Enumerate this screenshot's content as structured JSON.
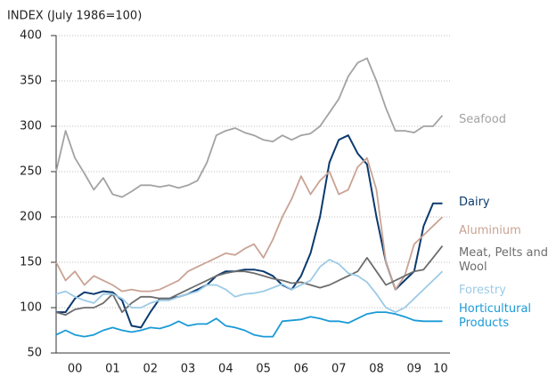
{
  "chart_data": {
    "type": "line",
    "y_label": "INDEX (July 1986=100)",
    "x": [
      2000,
      2000.25,
      2000.5,
      2000.75,
      2001,
      2001.25,
      2001.5,
      2001.75,
      2002,
      2002.25,
      2002.5,
      2002.75,
      2003,
      2003.25,
      2003.5,
      2003.75,
      2004,
      2004.25,
      2004.5,
      2004.75,
      2005,
      2005.25,
      2005.5,
      2005.75,
      2006,
      2006.25,
      2006.5,
      2006.75,
      2007,
      2007.25,
      2007.5,
      2007.75,
      2008,
      2008.25,
      2008.5,
      2008.75,
      2009,
      2009.25,
      2009.5,
      2009.75,
      2010,
      2010.25
    ],
    "xlim": [
      2000,
      2010.45
    ],
    "xticks": [
      {
        "value": 2000.5,
        "label": "00"
      },
      {
        "value": 2001.5,
        "label": "01"
      },
      {
        "value": 2002.5,
        "label": "02"
      },
      {
        "value": 2003.5,
        "label": "03"
      },
      {
        "value": 2004.5,
        "label": "04"
      },
      {
        "value": 2005.5,
        "label": "05"
      },
      {
        "value": 2006.5,
        "label": "06"
      },
      {
        "value": 2007.5,
        "label": "07"
      },
      {
        "value": 2008.5,
        "label": "08"
      },
      {
        "value": 2009.5,
        "label": "09"
      },
      {
        "value": 2010.2,
        "label": "10"
      }
    ],
    "ylim": [
      50,
      400
    ],
    "yticks": [
      50,
      100,
      150,
      200,
      250,
      300,
      350,
      400
    ],
    "grid": true,
    "series": [
      {
        "name": "Seafood",
        "color": "#a3a3a3",
        "values": [
          250,
          295,
          265,
          248,
          230,
          243,
          225,
          222,
          228,
          235,
          235,
          233,
          235,
          232,
          235,
          240,
          260,
          290,
          295,
          298,
          293,
          290,
          285,
          283,
          290,
          285,
          290,
          292,
          300,
          315,
          330,
          355,
          370,
          375,
          350,
          320,
          295,
          295,
          293,
          300,
          300,
          312
        ]
      },
      {
        "name": "Dairy",
        "color": "#0b3a6e",
        "values": [
          95,
          95,
          110,
          117,
          115,
          118,
          117,
          108,
          80,
          78,
          95,
          110,
          110,
          112,
          115,
          120,
          125,
          135,
          140,
          140,
          142,
          142,
          140,
          135,
          125,
          120,
          135,
          160,
          200,
          260,
          285,
          290,
          270,
          258,
          200,
          150,
          120,
          130,
          140,
          190,
          215,
          215
        ]
      },
      {
        "name": "Aluminium",
        "color": "#c9a394",
        "values": [
          150,
          130,
          140,
          125,
          135,
          130,
          125,
          118,
          120,
          118,
          118,
          120,
          125,
          130,
          140,
          145,
          150,
          155,
          160,
          158,
          165,
          170,
          155,
          175,
          200,
          220,
          245,
          225,
          240,
          250,
          225,
          230,
          255,
          265,
          230,
          150,
          120,
          135,
          170,
          180,
          190,
          200
        ]
      },
      {
        "name": "Meat, Pelts and Wool",
        "color": "#6d6d6d",
        "values": [
          95,
          92,
          98,
          100,
          100,
          105,
          115,
          95,
          105,
          112,
          112,
          110,
          110,
          115,
          120,
          125,
          130,
          135,
          138,
          140,
          140,
          138,
          135,
          132,
          130,
          127,
          128,
          125,
          122,
          125,
          130,
          135,
          140,
          155,
          140,
          125,
          130,
          135,
          140,
          142,
          155,
          168
        ]
      },
      {
        "name": "Forestry",
        "color": "#9ccbe6",
        "values": [
          115,
          118,
          112,
          108,
          105,
          115,
          115,
          110,
          100,
          100,
          105,
          108,
          108,
          112,
          115,
          118,
          125,
          125,
          120,
          112,
          115,
          116,
          118,
          122,
          126,
          120,
          125,
          130,
          145,
          153,
          148,
          138,
          135,
          128,
          115,
          100,
          95,
          100,
          110,
          120,
          130,
          140
        ]
      },
      {
        "name": "Horticultural Products",
        "color": "#1a9ad6",
        "values": [
          70,
          75,
          70,
          68,
          70,
          75,
          78,
          75,
          73,
          75,
          78,
          77,
          80,
          85,
          80,
          82,
          82,
          88,
          80,
          78,
          75,
          70,
          68,
          68,
          85,
          86,
          87,
          90,
          88,
          85,
          85,
          83,
          88,
          93,
          95,
          95,
          93,
          90,
          86,
          85,
          85,
          85
        ]
      }
    ]
  }
}
